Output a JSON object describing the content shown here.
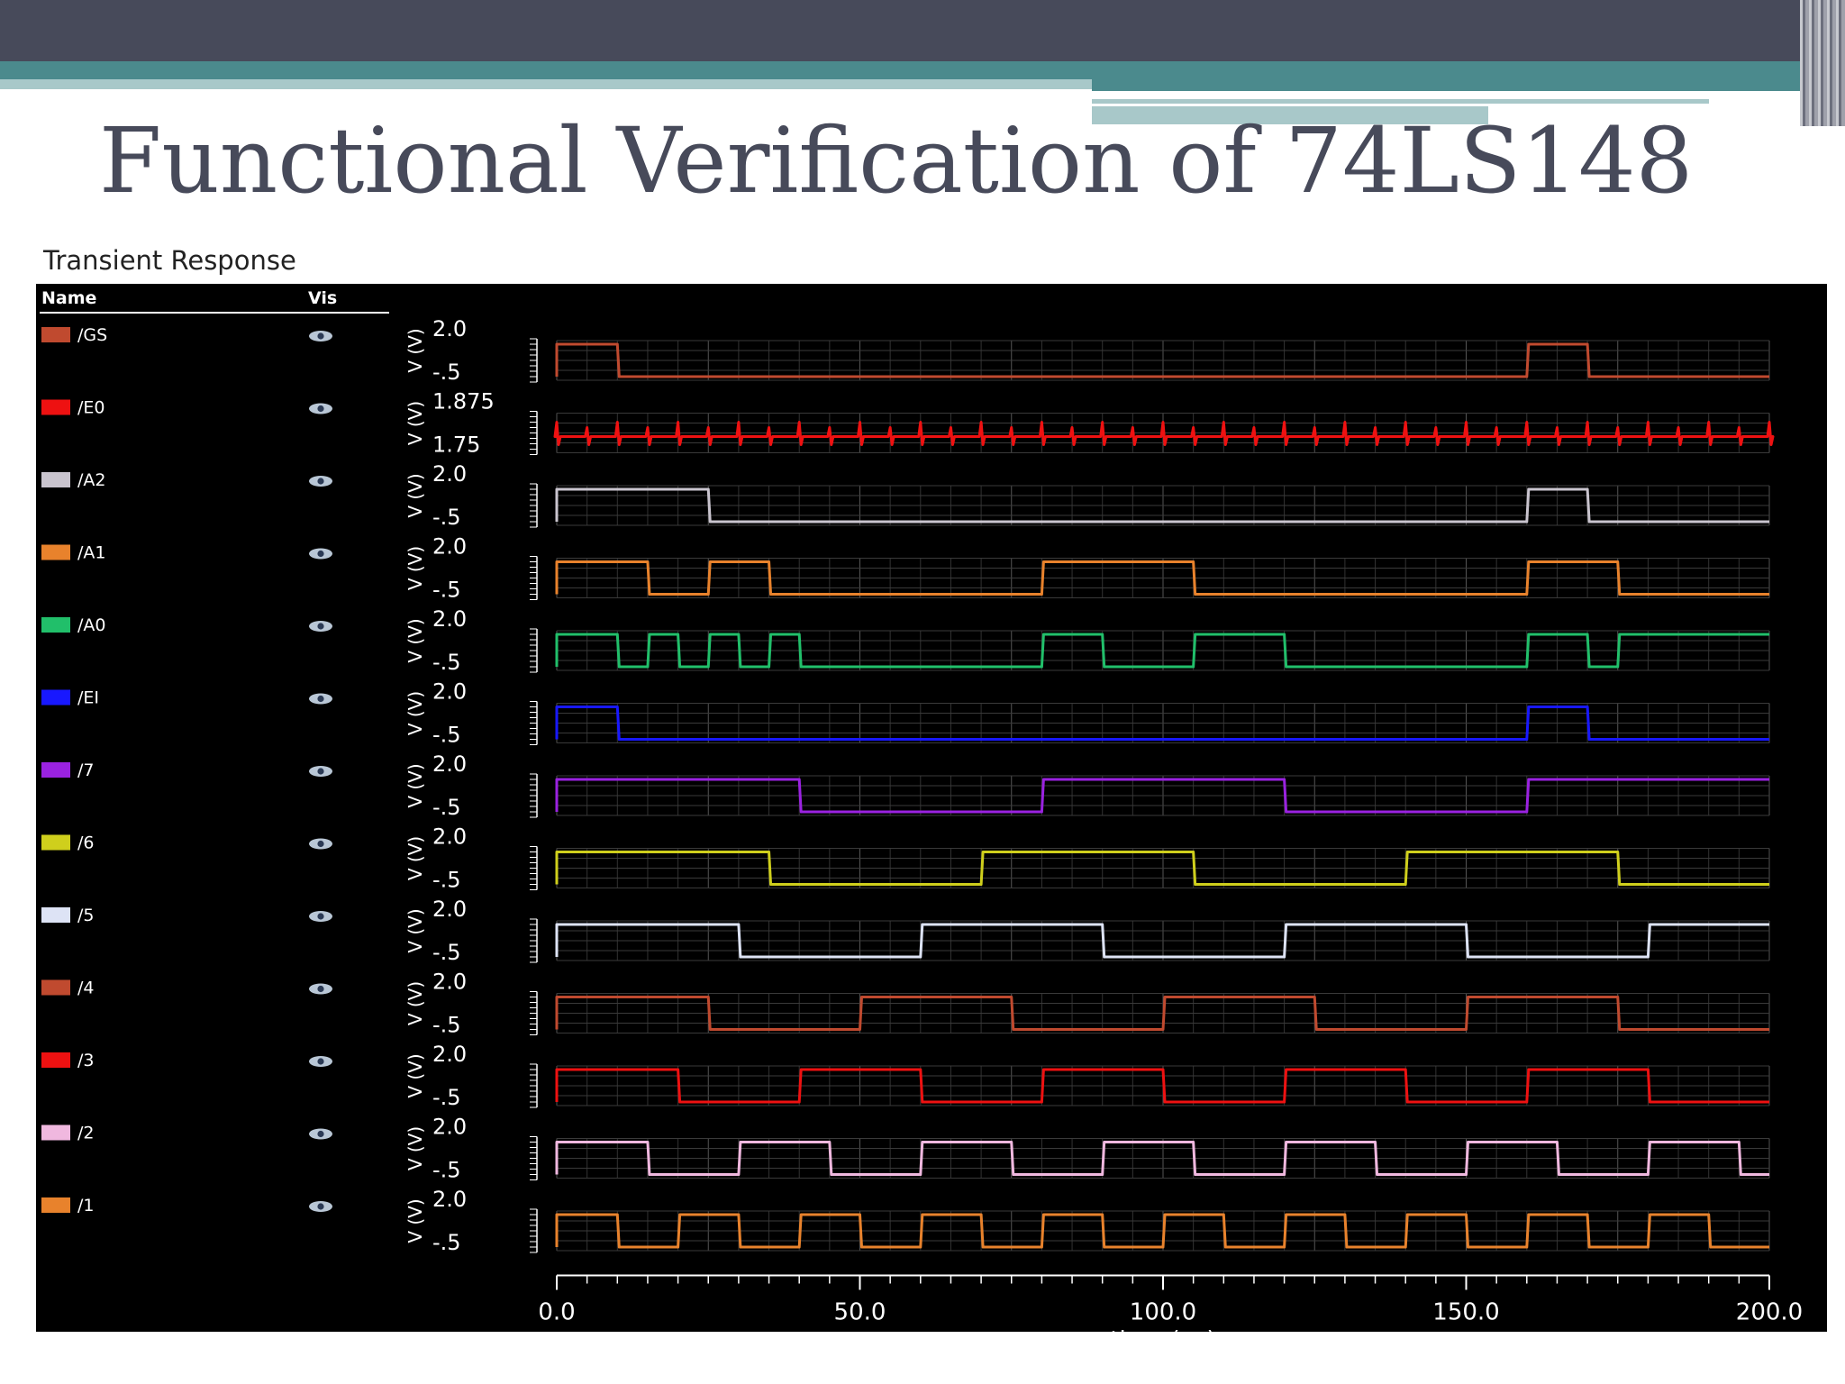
{
  "slide_title": "Functional Verification of 74LS148",
  "panel_title": "Transient Response",
  "list_headers": {
    "name": "Name",
    "vis": "Vis"
  },
  "chart_data": {
    "type": "line",
    "title": "Transient Response",
    "xlabel": "time (ns)",
    "ylabel": "V (V)",
    "xlim": [
      0,
      200
    ],
    "x_ticks": [
      "0.0",
      "50.0",
      "100.0",
      "150.0",
      "200.0"
    ],
    "grid": true,
    "series": [
      {
        "name": "/GS",
        "color": "#c04a2f",
        "ylim": [
          -0.5,
          2.0
        ],
        "tick_top": "2.0",
        "tick_bottom": "-.5",
        "initial": 1,
        "transitions": [
          10,
          160,
          170
        ]
      },
      {
        "name": "/E0",
        "color": "#ee1111",
        "ylim": [
          1.75,
          1.875
        ],
        "tick_top": "1.875",
        "tick_bottom": "1.75",
        "analog": true,
        "glitch_times": [
          0,
          5,
          10,
          15,
          20,
          25,
          30,
          35,
          40,
          45,
          50,
          55,
          60,
          65,
          70,
          75,
          80,
          85,
          90,
          95,
          100,
          105,
          110,
          115,
          120,
          125,
          130,
          135,
          140,
          145,
          150,
          155,
          160,
          165,
          170,
          175,
          180,
          185,
          190,
          195,
          200
        ]
      },
      {
        "name": "/A2",
        "color": "#c9c4ce",
        "ylim": [
          -0.5,
          2.0
        ],
        "tick_top": "2.0",
        "tick_bottom": "-.5",
        "initial": 1,
        "transitions": [
          25,
          160,
          170
        ]
      },
      {
        "name": "/A1",
        "color": "#e8822c",
        "ylim": [
          -0.5,
          2.0
        ],
        "tick_top": "2.0",
        "tick_bottom": "-.5",
        "initial": 1,
        "transitions": [
          15,
          25,
          35,
          80,
          105,
          160,
          175
        ]
      },
      {
        "name": "/A0",
        "color": "#21bf6a",
        "ylim": [
          -0.5,
          2.0
        ],
        "tick_top": "2.0",
        "tick_bottom": "-.5",
        "initial": 1,
        "transitions": [
          10,
          15,
          20,
          25,
          30,
          35,
          40,
          80,
          90,
          105,
          120,
          160,
          170,
          175
        ]
      },
      {
        "name": "/EI",
        "color": "#1818ff",
        "ylim": [
          -0.5,
          2.0
        ],
        "tick_top": "2.0",
        "tick_bottom": "-.5",
        "initial": 1,
        "transitions": [
          10,
          160,
          170
        ]
      },
      {
        "name": "/7",
        "color": "#9a22e0",
        "ylim": [
          -0.5,
          2.0
        ],
        "tick_top": "2.0",
        "tick_bottom": "-.5",
        "initial": 1,
        "transitions": [
          40,
          80,
          120,
          160
        ]
      },
      {
        "name": "/6",
        "color": "#cfcf1c",
        "ylim": [
          -0.5,
          2.0
        ],
        "tick_top": "2.0",
        "tick_bottom": "-.5",
        "initial": 1,
        "transitions": [
          35,
          70,
          105,
          140,
          175
        ]
      },
      {
        "name": "/5",
        "color": "#dde3f5",
        "ylim": [
          -0.5,
          2.0
        ],
        "tick_top": "2.0",
        "tick_bottom": "-.5",
        "initial": 1,
        "transitions": [
          30,
          60,
          90,
          120,
          150,
          180
        ]
      },
      {
        "name": "/4",
        "color": "#c04a2f",
        "ylim": [
          -0.5,
          2.0
        ],
        "tick_top": "2.0",
        "tick_bottom": "-.5",
        "initial": 1,
        "transitions": [
          25,
          50,
          75,
          100,
          125,
          150,
          175
        ]
      },
      {
        "name": "/3",
        "color": "#ee1111",
        "ylim": [
          -0.5,
          2.0
        ],
        "tick_top": "2.0",
        "tick_bottom": "-.5",
        "initial": 1,
        "transitions": [
          20,
          40,
          60,
          80,
          100,
          120,
          140,
          160,
          180
        ]
      },
      {
        "name": "/2",
        "color": "#f0b8df",
        "ylim": [
          -0.5,
          2.0
        ],
        "tick_top": "2.0",
        "tick_bottom": "-.5",
        "initial": 1,
        "transitions": [
          15,
          30,
          45,
          60,
          75,
          90,
          105,
          120,
          135,
          150,
          165,
          180,
          195
        ]
      },
      {
        "name": "/1",
        "color": "#e8822c",
        "ylim": [
          -0.5,
          2.0
        ],
        "tick_top": "2.0",
        "tick_bottom": "-.5",
        "initial": 1,
        "transitions": [
          10,
          20,
          30,
          40,
          50,
          60,
          70,
          80,
          90,
          100,
          110,
          120,
          130,
          140,
          150,
          160,
          170,
          180,
          190
        ]
      }
    ]
  }
}
